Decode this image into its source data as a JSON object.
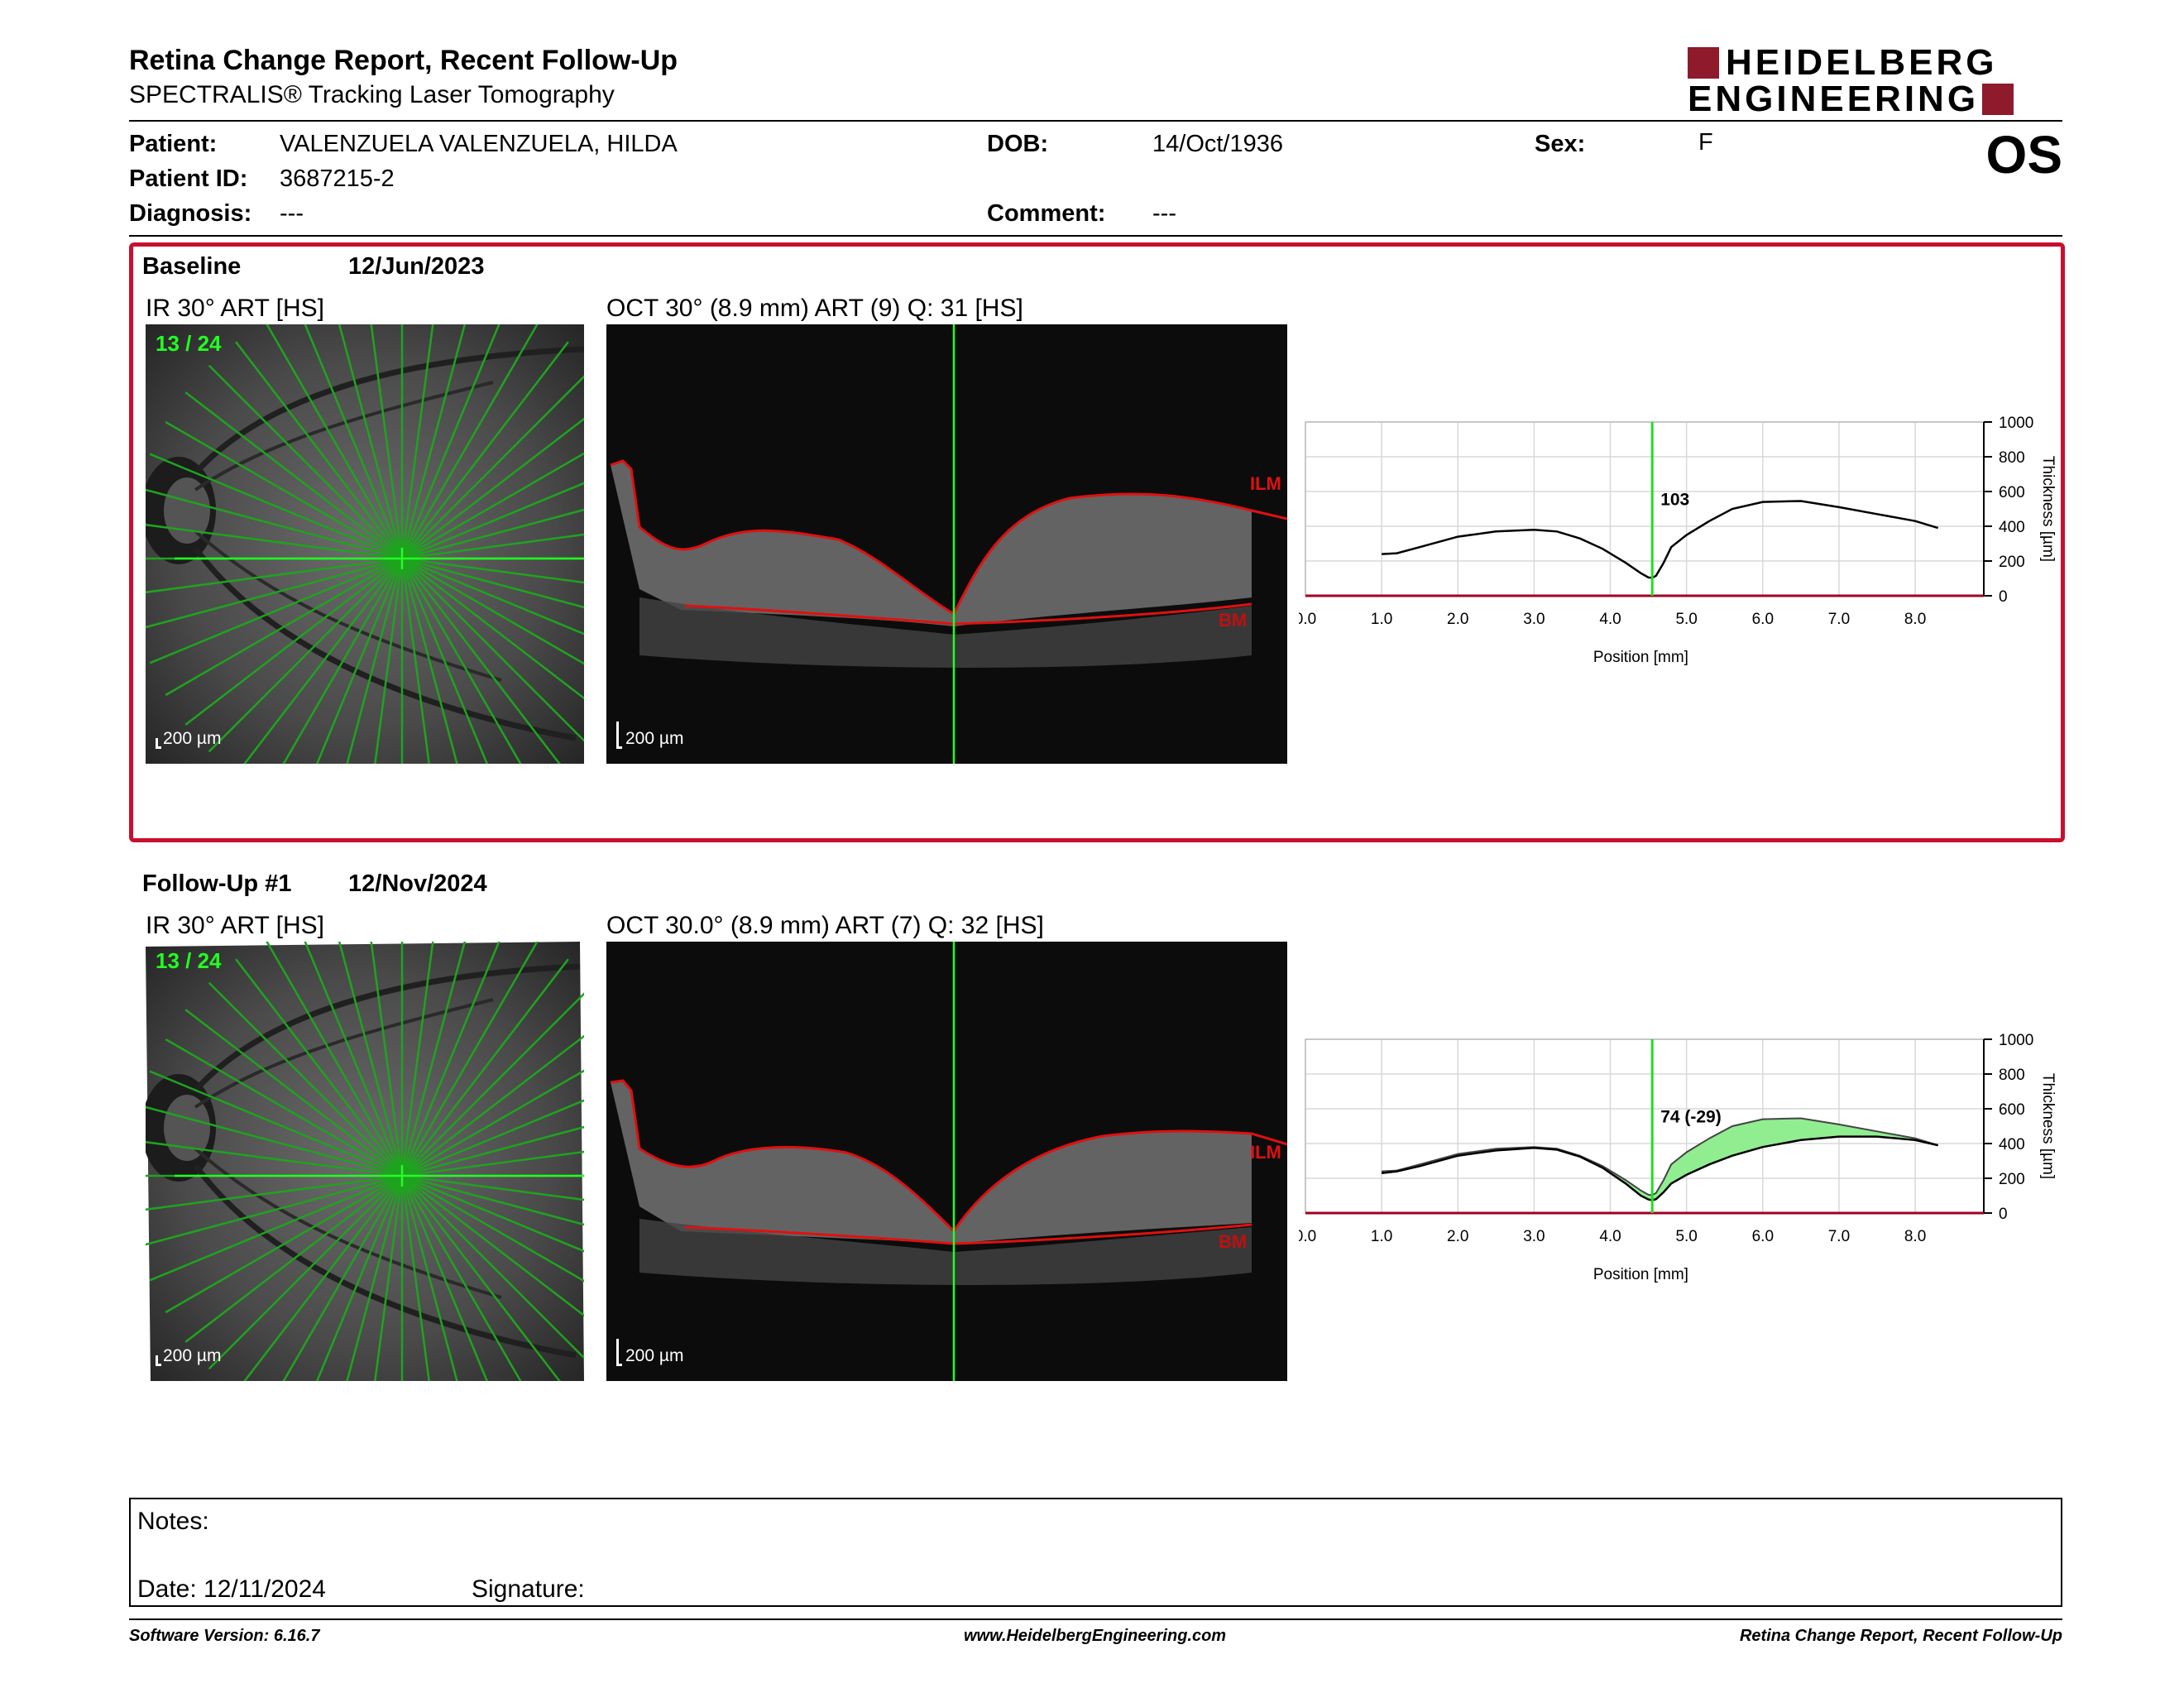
{
  "header": {
    "title": "Retina Change Report, Recent Follow-Up",
    "subtitle": "SPECTRALIS® Tracking Laser Tomography",
    "logo_line1": "HEIDELBERG",
    "logo_line2": "ENGINEERING",
    "eye": "OS"
  },
  "patient": {
    "patient_label": "Patient:",
    "patient_value": "VALENZUELA VALENZUELA, HILDA",
    "id_label": "Patient ID:",
    "id_value": "3687215-2",
    "diagnosis_label": "Diagnosis:",
    "diagnosis_value": "---",
    "dob_label": "DOB:",
    "dob_value": "14/Oct/1936",
    "comment_label": "Comment:",
    "comment_value": "---",
    "sex_label": "Sex:",
    "sex_value": "F"
  },
  "baseline": {
    "label": "Baseline",
    "date": "12/Jun/2023",
    "ir_label": "IR 30° ART [HS]",
    "oct_label": "OCT 30° (8.9 mm) ART (9) Q: 31 [HS]",
    "scan_index": "13 / 24",
    "scale_ir": "200 µm",
    "scale_oct": "200 µm",
    "ilm": "ILM",
    "bm": "BM"
  },
  "followup": {
    "label": "Follow-Up #1",
    "date": "12/Nov/2024",
    "ir_label": "IR 30° ART [HS]",
    "oct_label": "OCT 30.0° (8.9 mm) ART (7) Q: 32 [HS]",
    "scan_index": "13 / 24",
    "scale_ir": "200 µm",
    "scale_oct": "200 µm",
    "ilm": "ILM",
    "bm": "BM"
  },
  "chart_data": [
    {
      "type": "line",
      "xlabel": "Position [mm]",
      "ylabel": "Thickness [µm]",
      "xlim": [
        0,
        8.9
      ],
      "ylim": [
        0,
        1000
      ],
      "xticks": [
        "0.0",
        "1.0",
        "2.0",
        "3.0",
        "4.0",
        "5.0",
        "6.0",
        "7.0",
        "8.0"
      ],
      "yticks": [
        "0",
        "200",
        "400",
        "600",
        "800",
        "1000"
      ],
      "cursor_x": 4.55,
      "annotation": "103",
      "grid": true,
      "series": [
        {
          "x": [
            1.0,
            1.2,
            1.5,
            2.0,
            2.5,
            3.0,
            3.3,
            3.6,
            3.9,
            4.2,
            4.4,
            4.5,
            4.55,
            4.6,
            4.7,
            4.8,
            5.0,
            5.3,
            5.6,
            6.0,
            6.5,
            7.0,
            7.5,
            8.0,
            8.3
          ],
          "y": [
            240,
            245,
            280,
            340,
            370,
            380,
            370,
            330,
            270,
            190,
            130,
            105,
            103,
            115,
            190,
            280,
            350,
            430,
            500,
            540,
            545,
            510,
            470,
            430,
            390
          ]
        }
      ]
    },
    {
      "type": "area",
      "xlabel": "Position [mm]",
      "ylabel": "Thickness [µm]",
      "xlim": [
        0,
        8.9
      ],
      "ylim": [
        0,
        1000
      ],
      "xticks": [
        "0.0",
        "1.0",
        "2.0",
        "3.0",
        "4.0",
        "5.0",
        "6.0",
        "7.0",
        "8.0"
      ],
      "yticks": [
        "0",
        "200",
        "400",
        "600",
        "800",
        "1000"
      ],
      "cursor_x": 4.55,
      "annotation": "74 (-29)",
      "grid": true,
      "fill_color": "#90ee90",
      "series": [
        {
          "x": [
            1.0,
            1.2,
            1.5,
            2.0,
            2.5,
            3.0,
            3.3,
            3.6,
            3.9,
            4.2,
            4.4,
            4.5,
            4.55,
            4.6,
            4.7,
            4.8,
            5.0,
            5.3,
            5.6,
            6.0,
            6.5,
            7.0,
            7.5,
            8.0,
            8.3
          ],
          "y": [
            240,
            245,
            280,
            340,
            370,
            380,
            370,
            330,
            270,
            190,
            130,
            105,
            103,
            115,
            190,
            280,
            350,
            430,
            500,
            540,
            545,
            510,
            470,
            430,
            390
          ]
        },
        {
          "x": [
            1.0,
            1.2,
            1.5,
            2.0,
            2.5,
            3.0,
            3.3,
            3.6,
            3.9,
            4.2,
            4.4,
            4.5,
            4.55,
            4.6,
            4.7,
            4.8,
            5.0,
            5.3,
            5.6,
            6.0,
            6.5,
            7.0,
            7.5,
            8.0,
            8.3
          ],
          "y": [
            230,
            240,
            270,
            330,
            360,
            375,
            365,
            325,
            260,
            170,
            100,
            78,
            74,
            80,
            120,
            170,
            220,
            280,
            330,
            380,
            420,
            440,
            440,
            420,
            390
          ]
        }
      ]
    }
  ],
  "notes": {
    "notes_label": "Notes:",
    "date_text": "Date: 12/11/2024",
    "signature_label": "Signature:"
  },
  "footer": {
    "left": "Software Version: 6.16.7",
    "center": "www.HeidelbergEngineering.com",
    "right": "Retina Change Report, Recent Follow-Up"
  }
}
